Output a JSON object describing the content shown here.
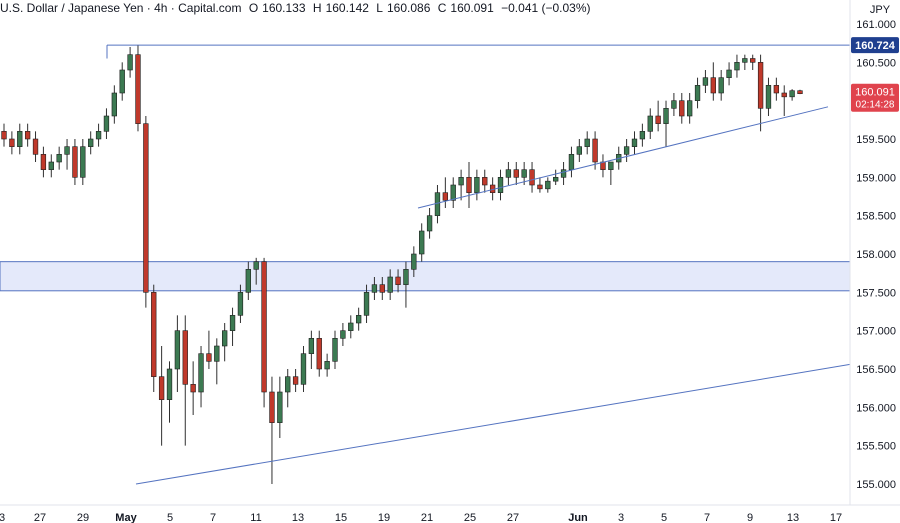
{
  "header": {
    "symbol_line": "U.S. Dollar / Japanese Yen · 4h · Capital.com",
    "ohlc": [
      {
        "label": "O",
        "value": "160.133"
      },
      {
        "label": "H",
        "value": "160.142"
      },
      {
        "label": "L",
        "value": "160.086"
      },
      {
        "label": "C",
        "value": "160.091"
      }
    ],
    "change": "−0.041 (−0.03%)",
    "currency": "JPY"
  },
  "colors": {
    "up": "#3c7a52",
    "down": "#c0392b",
    "wick": "#2f2f2f",
    "trendline": "#5473c0",
    "zone_fill": "#e4e9fa",
    "resistance_label_bg": "#1f3f8f",
    "price_label_bg": "#e0434d",
    "grid_text": "#131722"
  },
  "chart_data": {
    "type": "candlestick",
    "ylim": [
      154.8,
      161.25
    ],
    "y_ticks": [
      "161.000",
      "160.500",
      "160.000",
      "159.500",
      "159.000",
      "158.500",
      "158.000",
      "157.500",
      "157.000",
      "156.500",
      "156.000",
      "155.500",
      "155.000"
    ],
    "x_ticks": [
      "3",
      "27",
      "29",
      "May",
      "5",
      "7",
      "9",
      "11",
      "13",
      "15",
      "19",
      "21",
      "25",
      "27",
      "Jun",
      "3",
      "5",
      "7",
      "9",
      "11",
      "13",
      "15",
      "17"
    ],
    "resistance": {
      "price": 160.724,
      "label": "160.724"
    },
    "current_price": {
      "label": "160.091",
      "countdown": "02:14:28"
    },
    "zone": {
      "top": 157.9,
      "bottom": 157.52
    },
    "trendlines": [
      {
        "from": [
          0.0,
          155.0
        ],
        "to": [
          1.0,
          156.5
        ]
      },
      {
        "from": [
          0.0,
          158.6
        ],
        "to": [
          1.0,
          159.9
        ]
      }
    ],
    "candles": [
      [
        159.6,
        159.7,
        159.4,
        159.5
      ],
      [
        159.5,
        159.6,
        159.3,
        159.4
      ],
      [
        159.4,
        159.7,
        159.3,
        159.6
      ],
      [
        159.6,
        159.7,
        159.4,
        159.5
      ],
      [
        159.5,
        159.6,
        159.2,
        159.3
      ],
      [
        159.3,
        159.4,
        159.0,
        159.1
      ],
      [
        159.1,
        159.3,
        159.0,
        159.2
      ],
      [
        159.2,
        159.4,
        159.1,
        159.3
      ],
      [
        159.3,
        159.5,
        159.1,
        159.4
      ],
      [
        159.4,
        159.5,
        158.9,
        159.0
      ],
      [
        159.0,
        159.5,
        158.9,
        159.4
      ],
      [
        159.4,
        159.6,
        159.3,
        159.5
      ],
      [
        159.5,
        159.7,
        159.4,
        159.6
      ],
      [
        159.6,
        159.9,
        159.5,
        159.8
      ],
      [
        159.8,
        160.2,
        159.7,
        160.1
      ],
      [
        160.1,
        160.5,
        160.0,
        160.4
      ],
      [
        160.4,
        160.7,
        160.3,
        160.6
      ],
      [
        160.6,
        160.72,
        159.6,
        159.7
      ],
      [
        159.7,
        159.8,
        157.3,
        157.5
      ],
      [
        157.5,
        157.6,
        156.2,
        156.4
      ],
      [
        156.4,
        156.8,
        155.5,
        156.1
      ],
      [
        156.1,
        156.6,
        155.8,
        156.5
      ],
      [
        156.5,
        157.2,
        156.2,
        157.0
      ],
      [
        157.0,
        157.2,
        155.5,
        156.3
      ],
      [
        156.3,
        156.6,
        155.9,
        156.2
      ],
      [
        156.2,
        156.8,
        156.0,
        156.7
      ],
      [
        156.7,
        157.0,
        156.5,
        156.6
      ],
      [
        156.6,
        156.9,
        156.3,
        156.8
      ],
      [
        156.8,
        157.1,
        156.6,
        157.0
      ],
      [
        157.0,
        157.3,
        156.8,
        157.2
      ],
      [
        157.2,
        157.6,
        157.1,
        157.5
      ],
      [
        157.5,
        157.9,
        157.4,
        157.8
      ],
      [
        157.8,
        157.95,
        157.6,
        157.9
      ],
      [
        157.9,
        157.95,
        156.0,
        156.2
      ],
      [
        156.2,
        156.4,
        155.0,
        155.8
      ],
      [
        155.8,
        156.4,
        155.6,
        156.2
      ],
      [
        156.2,
        156.5,
        156.0,
        156.4
      ],
      [
        156.4,
        156.5,
        156.2,
        156.3
      ],
      [
        156.3,
        156.8,
        156.2,
        156.7
      ],
      [
        156.7,
        157.0,
        156.5,
        156.9
      ],
      [
        156.9,
        157.0,
        156.4,
        156.5
      ],
      [
        156.5,
        156.7,
        156.4,
        156.6
      ],
      [
        156.6,
        157.0,
        156.5,
        156.9
      ],
      [
        156.9,
        157.1,
        156.8,
        157.0
      ],
      [
        157.0,
        157.2,
        156.9,
        157.1
      ],
      [
        157.1,
        157.3,
        157.0,
        157.2
      ],
      [
        157.2,
        157.6,
        157.1,
        157.5
      ],
      [
        157.5,
        157.7,
        157.4,
        157.6
      ],
      [
        157.6,
        157.7,
        157.4,
        157.5
      ],
      [
        157.5,
        157.8,
        157.4,
        157.7
      ],
      [
        157.7,
        157.8,
        157.5,
        157.6
      ],
      [
        157.6,
        157.9,
        157.3,
        157.8
      ],
      [
        157.8,
        158.1,
        157.7,
        158.0
      ],
      [
        158.0,
        158.4,
        157.9,
        158.3
      ],
      [
        158.3,
        158.6,
        158.2,
        158.5
      ],
      [
        158.5,
        158.9,
        158.4,
        158.8
      ],
      [
        158.8,
        159.0,
        158.6,
        158.7
      ],
      [
        158.7,
        159.0,
        158.6,
        158.9
      ],
      [
        158.9,
        159.1,
        158.7,
        159.0
      ],
      [
        159.0,
        159.2,
        158.6,
        158.8
      ],
      [
        158.8,
        159.1,
        158.7,
        159.0
      ],
      [
        159.0,
        159.1,
        158.8,
        158.9
      ],
      [
        158.9,
        159.0,
        158.7,
        158.8
      ],
      [
        158.8,
        159.1,
        158.7,
        159.0
      ],
      [
        159.0,
        159.2,
        158.9,
        159.1
      ],
      [
        159.1,
        159.2,
        158.9,
        159.0
      ],
      [
        159.0,
        159.2,
        158.9,
        159.1
      ],
      [
        159.1,
        159.2,
        158.8,
        158.9
      ],
      [
        158.9,
        159.0,
        158.8,
        158.85
      ],
      [
        158.85,
        159.0,
        158.8,
        158.95
      ],
      [
        158.95,
        159.1,
        158.9,
        159.0
      ],
      [
        159.0,
        159.2,
        158.9,
        159.1
      ],
      [
        159.1,
        159.4,
        159.0,
        159.3
      ],
      [
        159.3,
        159.5,
        159.2,
        159.4
      ],
      [
        159.4,
        159.6,
        159.3,
        159.5
      ],
      [
        159.5,
        159.6,
        159.1,
        159.2
      ],
      [
        159.2,
        159.3,
        159.0,
        159.1
      ],
      [
        159.1,
        159.2,
        158.9,
        159.2
      ],
      [
        159.2,
        159.4,
        159.1,
        159.3
      ],
      [
        159.3,
        159.5,
        159.2,
        159.4
      ],
      [
        159.4,
        159.6,
        159.3,
        159.5
      ],
      [
        159.5,
        159.7,
        159.4,
        159.6
      ],
      [
        159.6,
        159.9,
        159.5,
        159.8
      ],
      [
        159.8,
        160.0,
        159.6,
        159.7
      ],
      [
        159.7,
        160.0,
        159.4,
        159.9
      ],
      [
        159.9,
        160.1,
        159.8,
        160.0
      ],
      [
        160.0,
        160.1,
        159.7,
        159.8
      ],
      [
        159.8,
        160.1,
        159.7,
        160.0
      ],
      [
        160.0,
        160.3,
        159.9,
        160.2
      ],
      [
        160.2,
        160.4,
        160.1,
        160.3
      ],
      [
        160.3,
        160.5,
        160.0,
        160.1
      ],
      [
        160.1,
        160.4,
        160.0,
        160.3
      ],
      [
        160.3,
        160.5,
        160.2,
        160.4
      ],
      [
        160.4,
        160.6,
        160.3,
        160.5
      ],
      [
        160.5,
        160.6,
        160.4,
        160.55
      ],
      [
        160.55,
        160.6,
        160.4,
        160.5
      ],
      [
        160.5,
        160.6,
        159.6,
        159.9
      ],
      [
        159.9,
        160.3,
        159.8,
        160.2
      ],
      [
        160.2,
        160.3,
        160.0,
        160.1
      ],
      [
        160.1,
        160.2,
        159.8,
        160.05
      ],
      [
        160.05,
        160.15,
        160.0,
        160.13
      ],
      [
        160.13,
        160.142,
        160.086,
        160.091
      ]
    ]
  }
}
